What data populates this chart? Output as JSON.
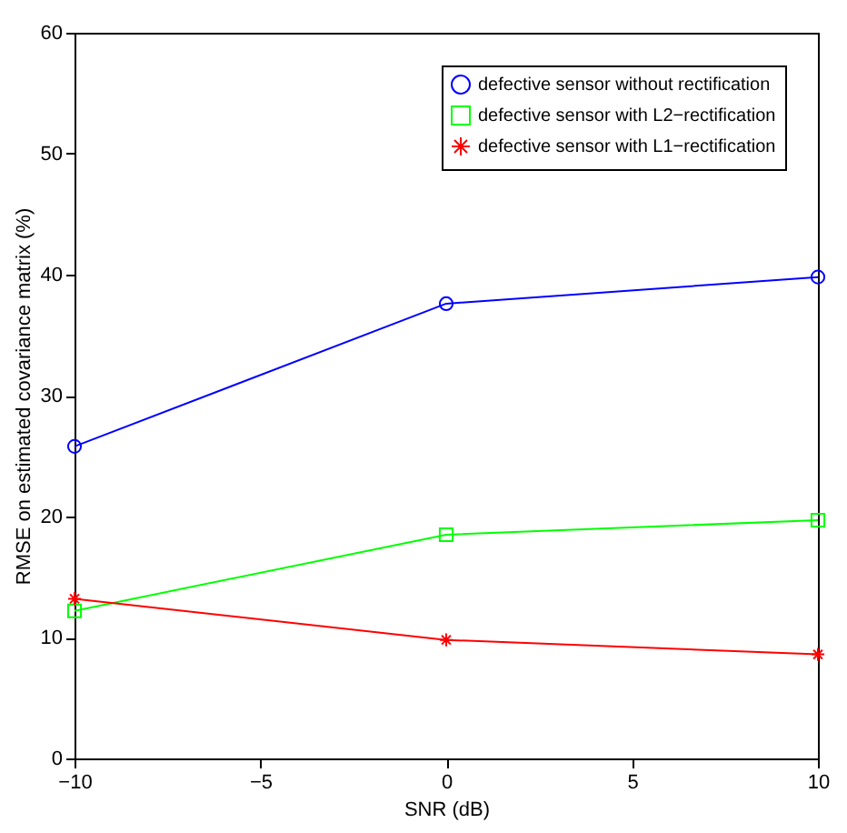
{
  "chart_data": {
    "type": "line",
    "xlabel": "SNR (dB)",
    "ylabel": "RMSE on estimated covariance matrix (%)",
    "x": [
      -10,
      0,
      10
    ],
    "xlim": [
      -10,
      10
    ],
    "xticks": [
      -10,
      -5,
      0,
      5,
      10
    ],
    "ylim": [
      0,
      60
    ],
    "yticks": [
      0,
      10,
      20,
      30,
      40,
      50,
      60
    ],
    "grid": false,
    "legend": "top right",
    "line_style": "solid",
    "series": [
      {
        "name": "defective sensor without rectification",
        "color": "#0000ff",
        "marker": "circle",
        "values": [
          25.8,
          37.6,
          39.8
        ]
      },
      {
        "name": "defective sensor with L2−rectification",
        "color": "#00ff00",
        "marker": "square",
        "values": [
          12.2,
          18.5,
          19.7
        ]
      },
      {
        "name": "defective sensor with L1−rectification",
        "color": "#ff0000",
        "marker": "cross",
        "values": [
          13.2,
          9.8,
          8.6
        ]
      }
    ]
  }
}
